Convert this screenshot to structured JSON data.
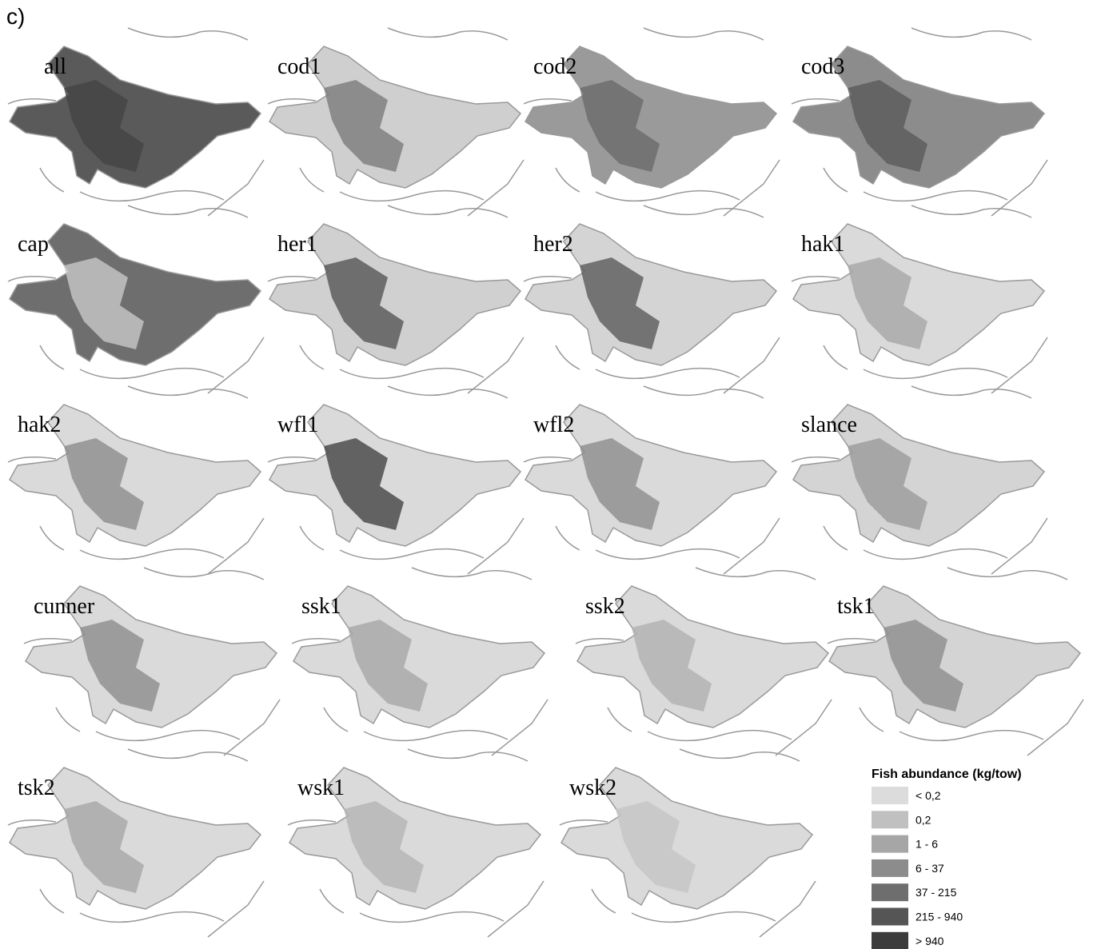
{
  "figure_label": "c)",
  "panels": [
    {
      "label": "all",
      "color": "#5a5a5a",
      "accent": "#444444"
    },
    {
      "label": "cod1",
      "color": "#cfcfcf",
      "accent": "#7a7a7a"
    },
    {
      "label": "cod2",
      "color": "#9a9a9a",
      "accent": "#6a6a6a"
    },
    {
      "label": "cod3",
      "color": "#8c8c8c",
      "accent": "#5a5a5a"
    },
    {
      "label": "cap",
      "color": "#6e6e6e",
      "accent": "#c8c8c8"
    },
    {
      "label": "her1",
      "color": "#d0d0d0",
      "accent": "#555555"
    },
    {
      "label": "her2",
      "color": "#d4d4d4",
      "accent": "#5a5a5a"
    },
    {
      "label": "hak1",
      "color": "#dadada",
      "accent": "#a6a6a6"
    },
    {
      "label": "hak2",
      "color": "#dadada",
      "accent": "#8c8c8c"
    },
    {
      "label": "wfl1",
      "color": "#dadada",
      "accent": "#444444"
    },
    {
      "label": "wfl2",
      "color": "#dadada",
      "accent": "#8c8c8c"
    },
    {
      "label": "slance",
      "color": "#d4d4d4",
      "accent": "#9a9a9a"
    },
    {
      "label": "cunner",
      "color": "#dadada",
      "accent": "#8c8c8c"
    },
    {
      "label": "ssk1",
      "color": "#dadada",
      "accent": "#a6a6a6"
    },
    {
      "label": "ssk2",
      "color": "#dadada",
      "accent": "#b0b0b0"
    },
    {
      "label": "tsk1",
      "color": "#d4d4d4",
      "accent": "#8c8c8c"
    },
    {
      "label": "tsk2",
      "color": "#dadada",
      "accent": "#a6a6a6"
    },
    {
      "label": "wsk1",
      "color": "#dadada",
      "accent": "#b4b4b4"
    },
    {
      "label": "wsk2",
      "color": "#dadada",
      "accent": "#c4c4c4"
    }
  ],
  "legend": {
    "title": "Fish abundance (kg/tow)",
    "items": [
      {
        "label": "< 0,2",
        "color": "#dcdcdc"
      },
      {
        "label": "0,2",
        "color": "#c0c0c0"
      },
      {
        "label": "1 - 6",
        "color": "#a6a6a6"
      },
      {
        "label": "6 - 37",
        "color": "#8c8c8c"
      },
      {
        "label": "37 - 215",
        "color": "#6e6e6e"
      },
      {
        "label": "215 - 940",
        "color": "#555555"
      },
      {
        "label": "> 940",
        "color": "#3c3c3c"
      }
    ]
  }
}
